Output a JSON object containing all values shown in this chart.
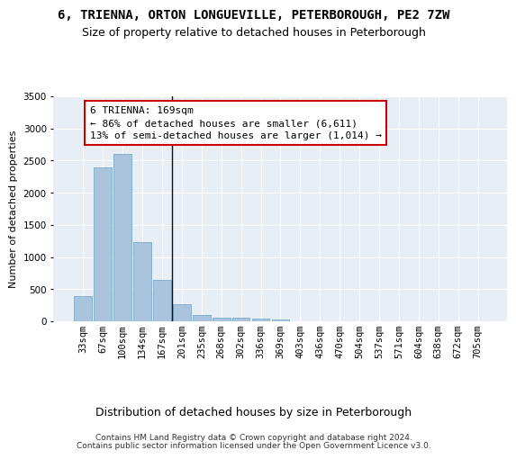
{
  "title1": "6, TRIENNA, ORTON LONGUEVILLE, PETERBOROUGH, PE2 7ZW",
  "title2": "Size of property relative to detached houses in Peterborough",
  "xlabel": "Distribution of detached houses by size in Peterborough",
  "ylabel": "Number of detached properties",
  "categories": [
    "33sqm",
    "67sqm",
    "100sqm",
    "134sqm",
    "167sqm",
    "201sqm",
    "235sqm",
    "268sqm",
    "302sqm",
    "336sqm",
    "369sqm",
    "403sqm",
    "436sqm",
    "470sqm",
    "504sqm",
    "537sqm",
    "571sqm",
    "604sqm",
    "638sqm",
    "672sqm",
    "705sqm"
  ],
  "values": [
    390,
    2400,
    2610,
    1230,
    640,
    260,
    100,
    60,
    55,
    40,
    30,
    0,
    0,
    0,
    0,
    0,
    0,
    0,
    0,
    0,
    0
  ],
  "bar_color": "#aac4de",
  "bar_edge_color": "#7aaacb",
  "vline_color": "#111111",
  "annotation_text": "6 TRIENNA: 169sqm\n← 86% of detached houses are smaller (6,611)\n13% of semi-detached houses are larger (1,014) →",
  "annotation_box_color": "#ffffff",
  "annotation_box_edge_color": "#cc0000",
  "ylim": [
    0,
    3500
  ],
  "yticks": [
    0,
    500,
    1000,
    1500,
    2000,
    2500,
    3000,
    3500
  ],
  "background_color": "#e8eef5",
  "grid_color": "#ffffff",
  "footer1": "Contains HM Land Registry data © Crown copyright and database right 2024.",
  "footer2": "Contains public sector information licensed under the Open Government Licence v3.0.",
  "title1_fontsize": 10,
  "title2_fontsize": 9,
  "xlabel_fontsize": 9,
  "ylabel_fontsize": 8,
  "tick_fontsize": 7.5,
  "annotation_fontsize": 8,
  "footer_fontsize": 6.5
}
